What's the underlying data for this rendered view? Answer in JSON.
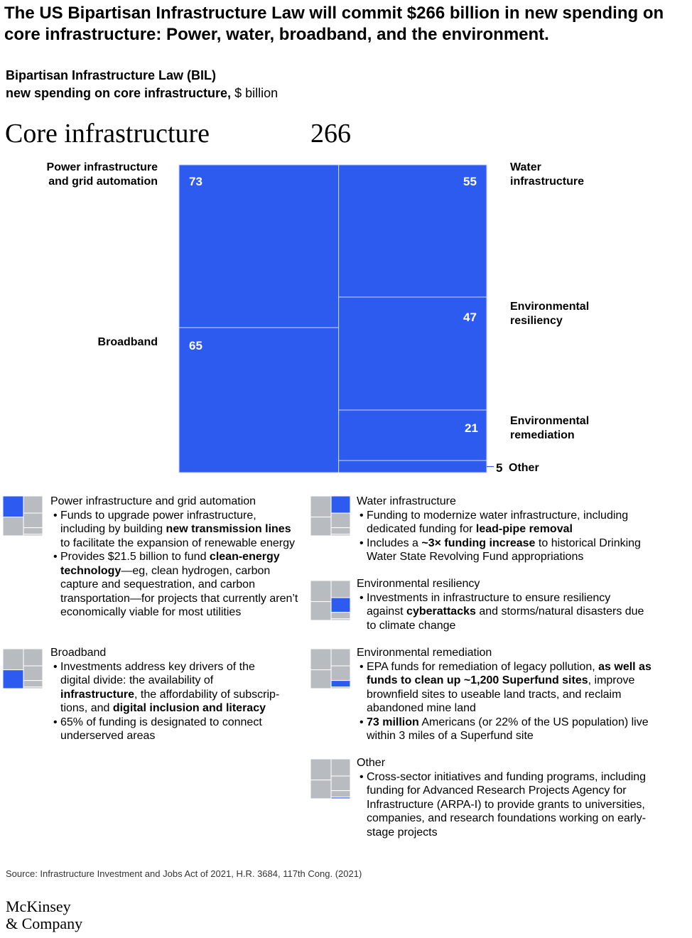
{
  "headline": "The US Bipartisan Infrastructure Law will commit $266 billion in new spending on core infrastructure: Power, water, broadband, and the environment.",
  "subtitle": {
    "line1": "Bipartisan Infrastructure Law (BIL)",
    "line2_bold": "new spending on core infrastructure,",
    "line2_unit": "$ billion"
  },
  "total": {
    "label": "Core infrastructure",
    "value": "266"
  },
  "colors": {
    "fill": "#2d5bf0",
    "divider": "#c8d2ff",
    "gray": "#b8bbbf",
    "leader": "#2d5bf0"
  },
  "chart_data": {
    "type": "treemap",
    "unit": "$ billion",
    "total": 266,
    "items": [
      {
        "name": "Power infrastructure and grid automation",
        "value": 73
      },
      {
        "name": "Broadband",
        "value": 65
      },
      {
        "name": "Water infrastructure",
        "value": 55
      },
      {
        "name": "Environmental resiliency",
        "value": 47
      },
      {
        "name": "Environmental remediation",
        "value": 21
      },
      {
        "name": "Other",
        "value": 5
      }
    ]
  },
  "labels": {
    "power": "Power infrastructure and grid automation",
    "broadband": "Broadband",
    "water": "Water infrastructure",
    "resiliency": "Environmental resiliency",
    "remediation": "Environmental remediation",
    "other": "Other"
  },
  "values_text": {
    "power": "73",
    "broadband": "65",
    "water": "55",
    "resiliency": "47",
    "remediation": "21",
    "other": "5"
  },
  "legend": {
    "power": {
      "title": "Power infrastructure and grid automation",
      "b1_pre": "Funds to upgrade power infrastructure, including by building ",
      "b1_bold": "new transmission lines",
      "b1_post": " to facilitate the expansion of renewable energy",
      "b2_pre": "Provides $21.5 billion to fund ",
      "b2_bold": "clean-energy technology",
      "b2_post": "—eg, clean hydrogen, carbon capture and sequestration, and carbon transportation—for projects that currently aren’t economically viable for most utilities"
    },
    "broadband": {
      "title": "Broadband",
      "b1_pre": "Investments address key drivers of the digital divide: the availability of ",
      "b1_bold1": "infrastructure",
      "b1_mid": ", the affordability of subscrip­tions, and ",
      "b1_bold2": "digital inclusion and literacy",
      "b2": "65% of funding is designated to connect underserved areas"
    },
    "water": {
      "title": "Water infrastructure",
      "b1_pre": "Funding to modernize water infrastructure, including dedicated funding for ",
      "b1_bold": "lead-pipe removal",
      "b2_pre": "Includes a ",
      "b2_bold": "~3× funding increase",
      "b2_post": " to historical Drinking Water State Revolving Fund appropriations"
    },
    "resiliency": {
      "title": "Environmental resiliency",
      "b1_pre": "Investments in infrastructure to ensure resiliency against ",
      "b1_bold": "cyberattacks",
      "b1_post": " and storms/natural disasters due to climate change"
    },
    "remediation": {
      "title": "Environmental remediation",
      "b1_pre": "EPA funds for remediation of legacy pollution, ",
      "b1_bold": "as well as funds to clean up ~1,200 Superfund sites",
      "b1_post": ", improve brownfield sites to useable land tracts, and reclaim abandoned mine land",
      "b2_bold": "73 million",
      "b2_post": " Americans (or 22% of the US population) live within 3 miles of a Superfund site"
    },
    "other": {
      "title": "Other",
      "b1": "Cross-sector initiatives and funding programs, including funding for Advanced Research Projects Agency for Infrastructure (ARPA-I) to provide grants to universities, companies, and research foundations working on early-stage projects"
    }
  },
  "source": "Source: Infrastructure Investment and Jobs Act of 2021, H.R. 3684, 117th Cong. (2021)",
  "logo": {
    "line1": "McKinsey",
    "line2": "& Company"
  }
}
